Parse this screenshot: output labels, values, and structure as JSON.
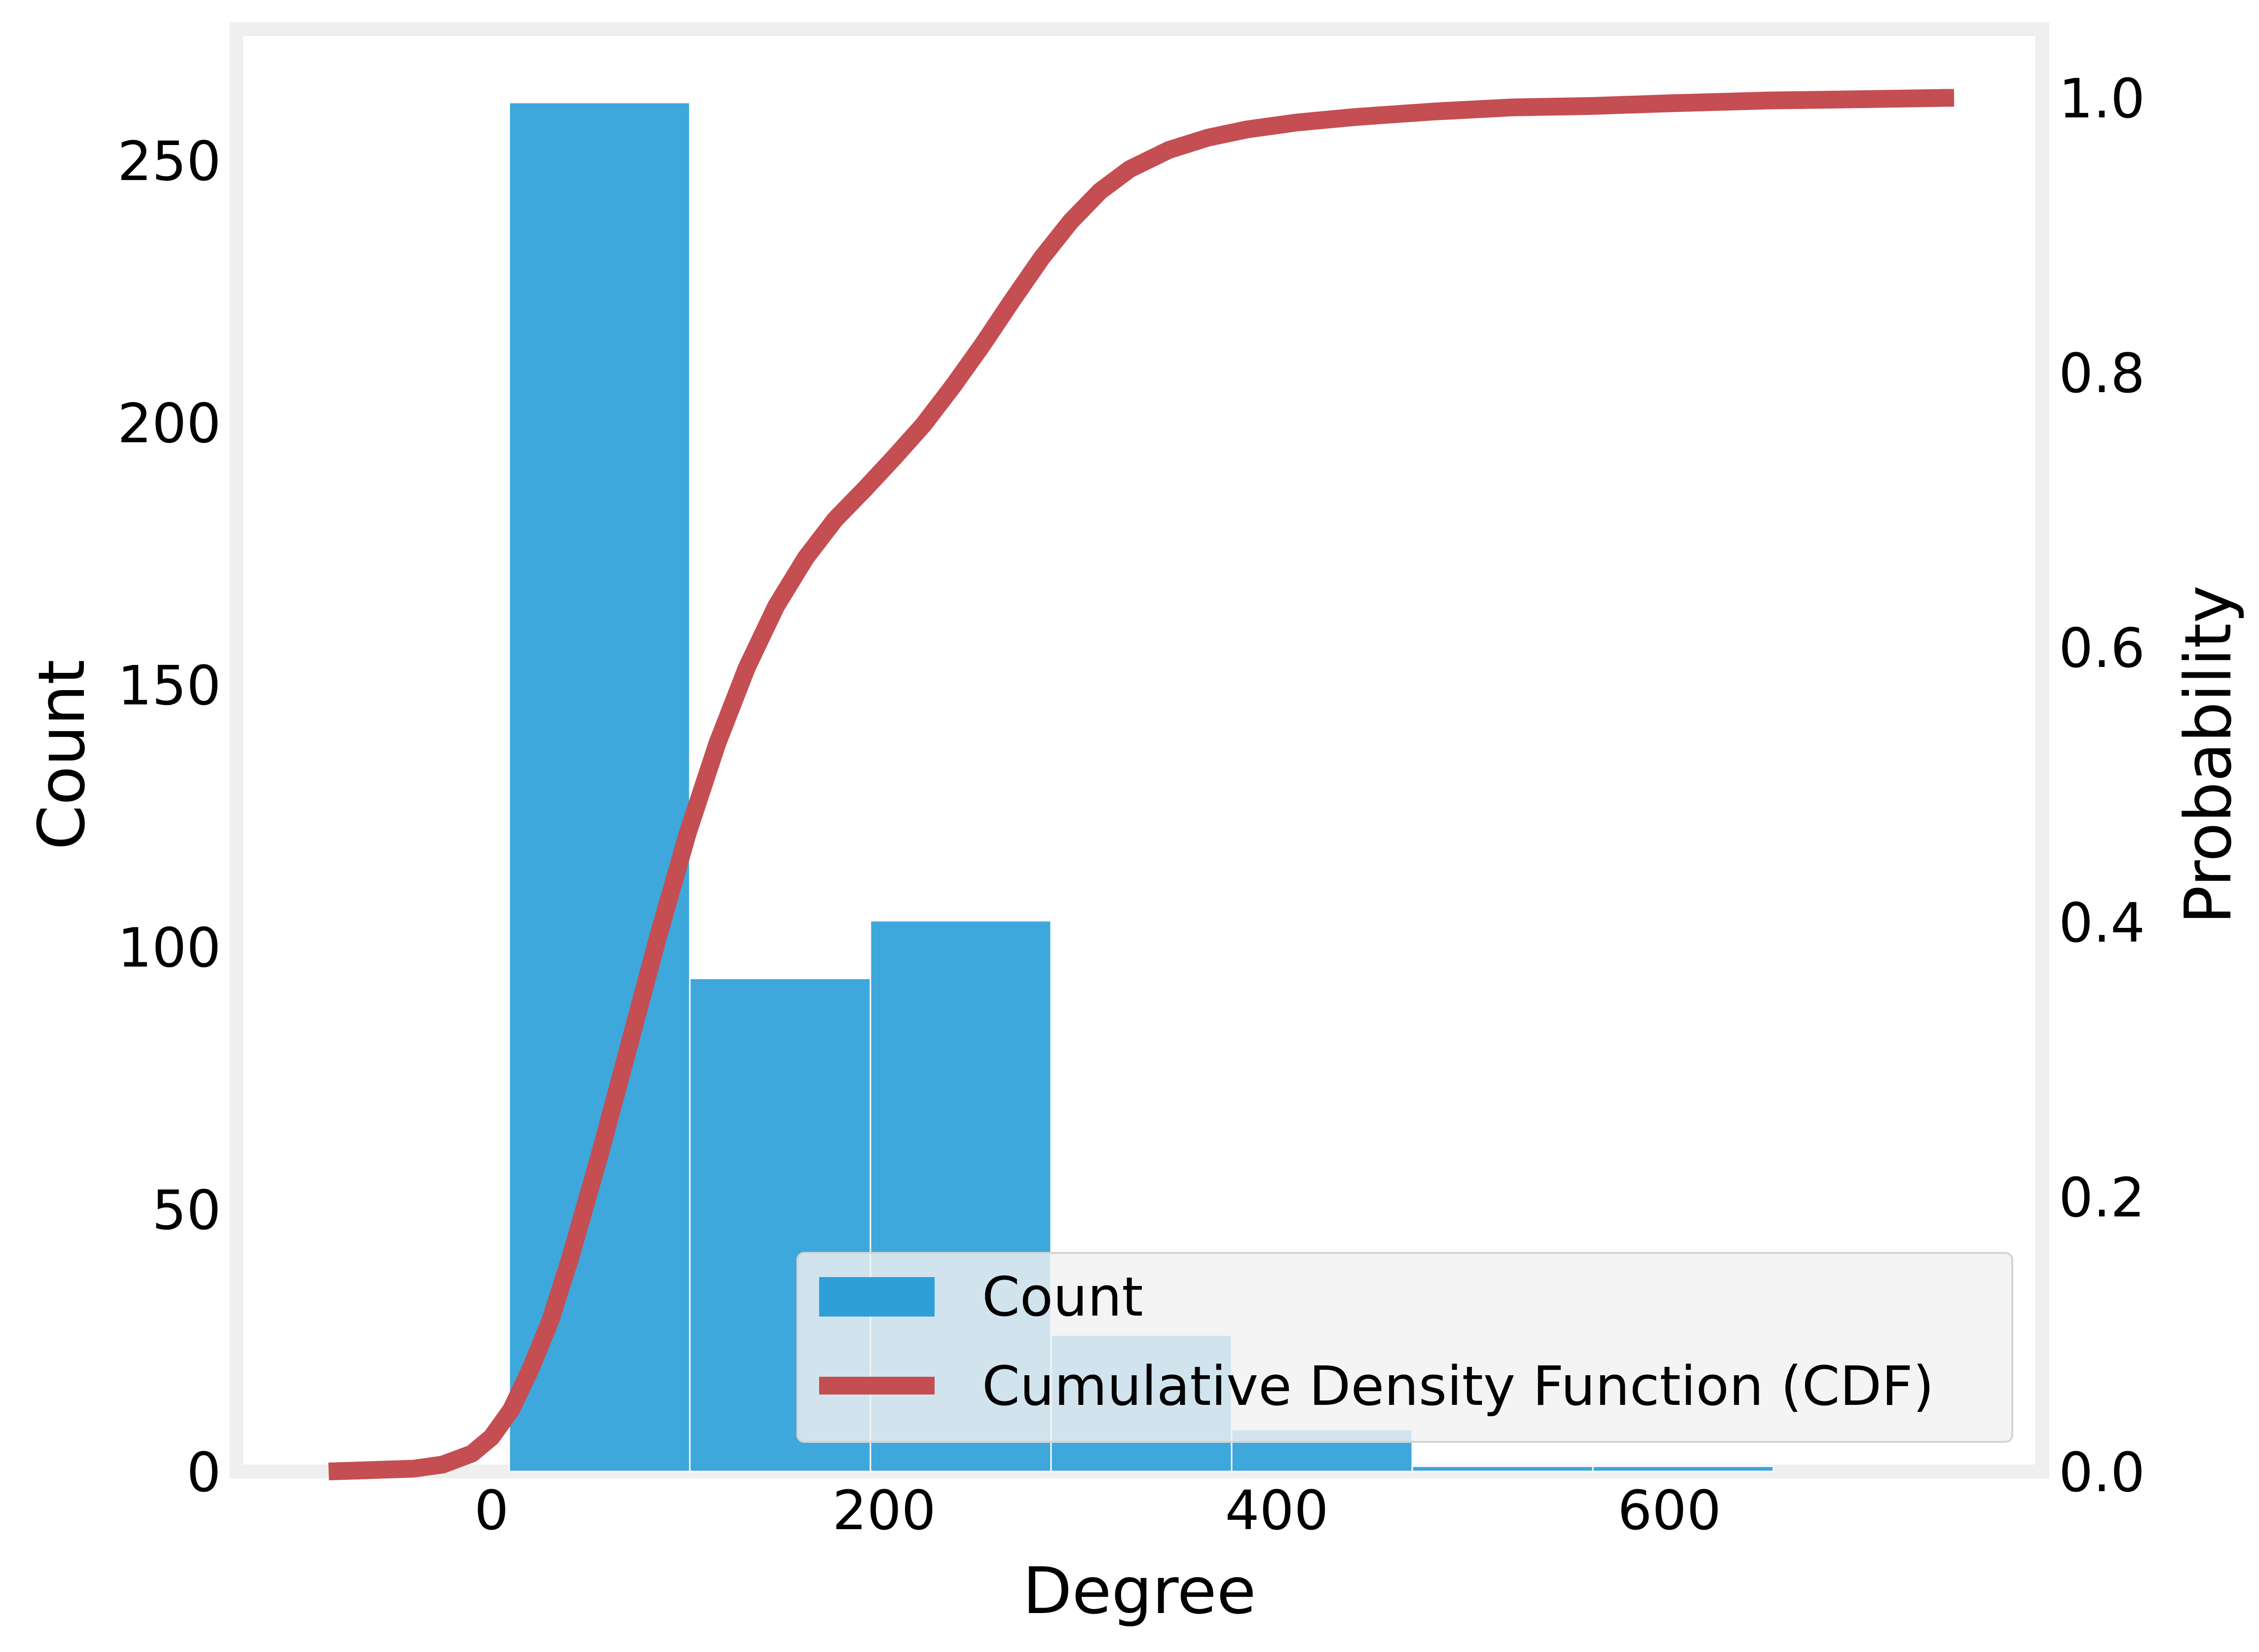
{
  "chart_data": {
    "type": "bar",
    "xlabel": "Degree",
    "ylabel_left": "Count",
    "ylabel_right": "Probability",
    "xlim": [
      -130,
      790
    ],
    "ylim_left": [
      0,
      275
    ],
    "ylim_right": [
      0,
      1.05
    ],
    "xticks": [
      0,
      200,
      400,
      600
    ],
    "xtick_labels": [
      "0",
      "200",
      "400",
      "600"
    ],
    "yticks_left": [
      0,
      50,
      100,
      150,
      200,
      250
    ],
    "ytick_labels_left": [
      "0",
      "50",
      "100",
      "150",
      "200",
      "250"
    ],
    "yticks_right": [
      0.0,
      0.2,
      0.4,
      0.6,
      0.8,
      1.0
    ],
    "ytick_labels_right": [
      "0.0",
      "0.2",
      "0.4",
      "0.6",
      "0.8",
      "1.0"
    ],
    "grid": false,
    "legend_position": "lower-right",
    "series": [
      {
        "name": "Count",
        "kind": "histogram",
        "color": "#2E9FD9",
        "bins": [
          {
            "x0": 9,
            "x1": 101,
            "count": 261
          },
          {
            "x0": 101,
            "x1": 193,
            "count": 94
          },
          {
            "x0": 193,
            "x1": 285,
            "count": 105
          },
          {
            "x0": 285,
            "x1": 377,
            "count": 26
          },
          {
            "x0": 377,
            "x1": 469,
            "count": 8
          },
          {
            "x0": 469,
            "x1": 561,
            "count": 1
          },
          {
            "x0": 561,
            "x1": 653,
            "count": 1
          }
        ]
      },
      {
        "name": "Cumulative Density Function (CDF)",
        "kind": "line",
        "color": "#C44E52",
        "axis": "right",
        "points": [
          [
            -83,
            0.0
          ],
          [
            -40,
            0.002
          ],
          [
            -25,
            0.005
          ],
          [
            -10,
            0.013
          ],
          [
            0,
            0.025
          ],
          [
            10,
            0.045
          ],
          [
            20,
            0.075
          ],
          [
            30,
            0.11
          ],
          [
            40,
            0.155
          ],
          [
            55,
            0.23
          ],
          [
            70,
            0.31
          ],
          [
            85,
            0.39
          ],
          [
            100,
            0.465
          ],
          [
            115,
            0.53
          ],
          [
            130,
            0.585
          ],
          [
            145,
            0.63
          ],
          [
            160,
            0.665
          ],
          [
            175,
            0.693
          ],
          [
            190,
            0.715
          ],
          [
            205,
            0.738
          ],
          [
            220,
            0.762
          ],
          [
            235,
            0.79
          ],
          [
            250,
            0.82
          ],
          [
            265,
            0.852
          ],
          [
            280,
            0.883
          ],
          [
            295,
            0.91
          ],
          [
            310,
            0.932
          ],
          [
            325,
            0.948
          ],
          [
            345,
            0.962
          ],
          [
            365,
            0.971
          ],
          [
            385,
            0.977
          ],
          [
            410,
            0.982
          ],
          [
            440,
            0.986
          ],
          [
            480,
            0.99
          ],
          [
            520,
            0.993
          ],
          [
            560,
            0.994
          ],
          [
            600,
            0.996
          ],
          [
            650,
            0.998
          ],
          [
            700,
            0.999
          ],
          [
            745,
            1.0
          ]
        ]
      }
    ]
  }
}
